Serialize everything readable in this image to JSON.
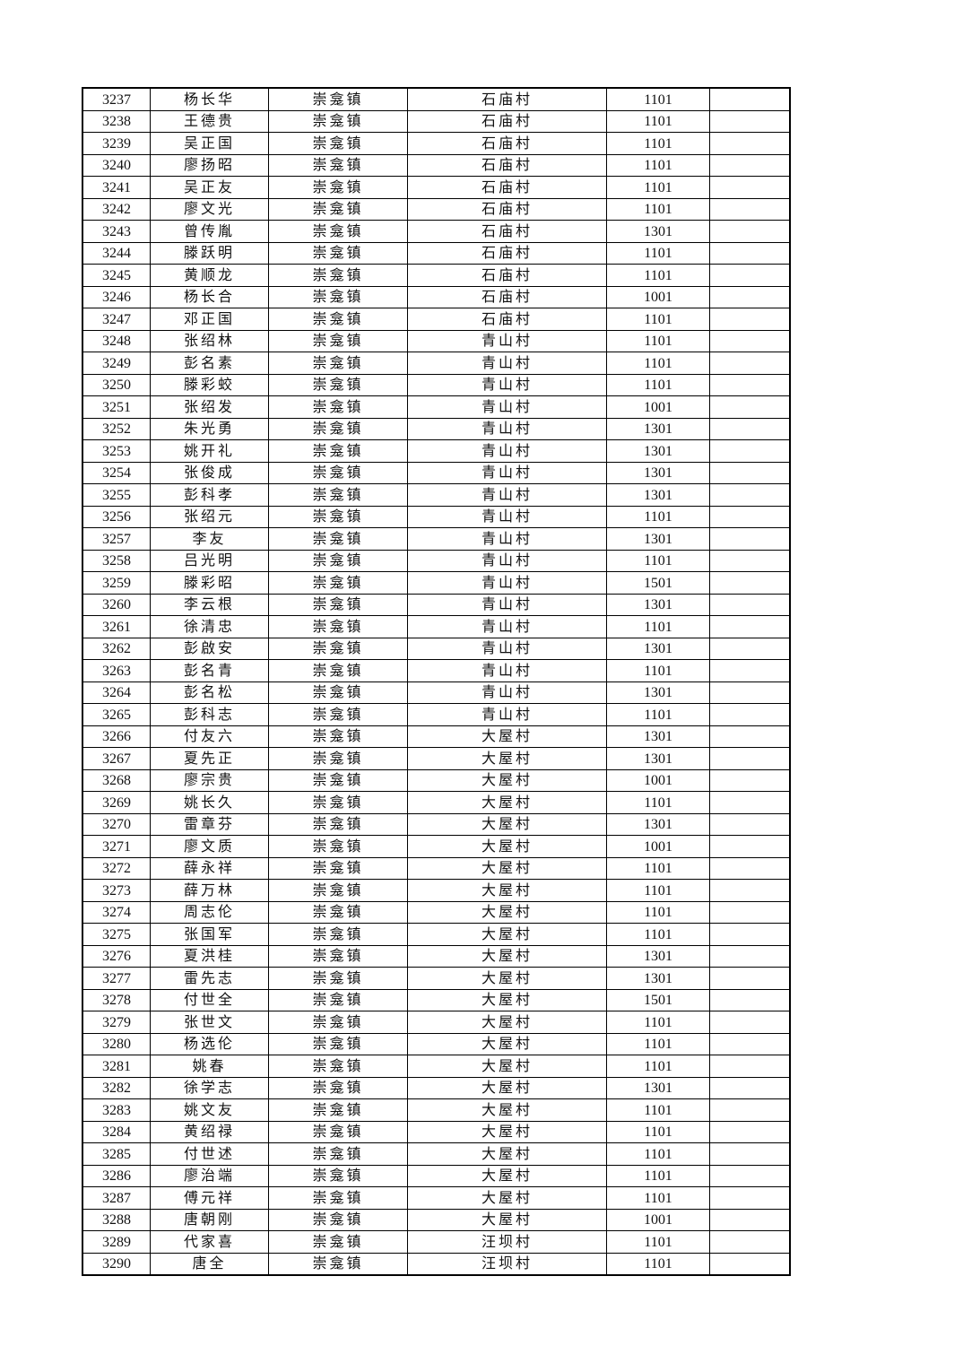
{
  "rows": [
    [
      "3237",
      "杨长华",
      "崇龛镇",
      "石庙村",
      "1101",
      ""
    ],
    [
      "3238",
      "王德贵",
      "崇龛镇",
      "石庙村",
      "1101",
      ""
    ],
    [
      "3239",
      "吴正国",
      "崇龛镇",
      "石庙村",
      "1101",
      ""
    ],
    [
      "3240",
      "廖扬昭",
      "崇龛镇",
      "石庙村",
      "1101",
      ""
    ],
    [
      "3241",
      "吴正友",
      "崇龛镇",
      "石庙村",
      "1101",
      ""
    ],
    [
      "3242",
      "廖文光",
      "崇龛镇",
      "石庙村",
      "1101",
      ""
    ],
    [
      "3243",
      "曾传胤",
      "崇龛镇",
      "石庙村",
      "1301",
      ""
    ],
    [
      "3244",
      "滕跃明",
      "崇龛镇",
      "石庙村",
      "1101",
      ""
    ],
    [
      "3245",
      "黄顺龙",
      "崇龛镇",
      "石庙村",
      "1101",
      ""
    ],
    [
      "3246",
      "杨长合",
      "崇龛镇",
      "石庙村",
      "1001",
      ""
    ],
    [
      "3247",
      "邓正国",
      "崇龛镇",
      "石庙村",
      "1101",
      ""
    ],
    [
      "3248",
      "张绍林",
      "崇龛镇",
      "青山村",
      "1101",
      ""
    ],
    [
      "3249",
      "彭名素",
      "崇龛镇",
      "青山村",
      "1101",
      ""
    ],
    [
      "3250",
      "滕彩蛟",
      "崇龛镇",
      "青山村",
      "1101",
      ""
    ],
    [
      "3251",
      "张绍发",
      "崇龛镇",
      "青山村",
      "1001",
      ""
    ],
    [
      "3252",
      "朱光勇",
      "崇龛镇",
      "青山村",
      "1301",
      ""
    ],
    [
      "3253",
      "姚开礼",
      "崇龛镇",
      "青山村",
      "1301",
      ""
    ],
    [
      "3254",
      "张俊成",
      "崇龛镇",
      "青山村",
      "1301",
      ""
    ],
    [
      "3255",
      "彭科孝",
      "崇龛镇",
      "青山村",
      "1301",
      ""
    ],
    [
      "3256",
      "张绍元",
      "崇龛镇",
      "青山村",
      "1101",
      ""
    ],
    [
      "3257",
      "李友",
      "崇龛镇",
      "青山村",
      "1301",
      ""
    ],
    [
      "3258",
      "吕光明",
      "崇龛镇",
      "青山村",
      "1101",
      ""
    ],
    [
      "3259",
      "滕彩昭",
      "崇龛镇",
      "青山村",
      "1501",
      ""
    ],
    [
      "3260",
      "李云根",
      "崇龛镇",
      "青山村",
      "1301",
      ""
    ],
    [
      "3261",
      "徐清忠",
      "崇龛镇",
      "青山村",
      "1101",
      ""
    ],
    [
      "3262",
      "彭啟安",
      "崇龛镇",
      "青山村",
      "1301",
      ""
    ],
    [
      "3263",
      "彭名青",
      "崇龛镇",
      "青山村",
      "1101",
      ""
    ],
    [
      "3264",
      "彭名松",
      "崇龛镇",
      "青山村",
      "1301",
      ""
    ],
    [
      "3265",
      "彭科志",
      "崇龛镇",
      "青山村",
      "1101",
      ""
    ],
    [
      "3266",
      "付友六",
      "崇龛镇",
      "大屋村",
      "1301",
      ""
    ],
    [
      "3267",
      "夏先正",
      "崇龛镇",
      "大屋村",
      "1301",
      ""
    ],
    [
      "3268",
      "廖宗贵",
      "崇龛镇",
      "大屋村",
      "1001",
      ""
    ],
    [
      "3269",
      "姚长久",
      "崇龛镇",
      "大屋村",
      "1101",
      ""
    ],
    [
      "3270",
      "雷章芬",
      "崇龛镇",
      "大屋村",
      "1301",
      ""
    ],
    [
      "3271",
      "廖文质",
      "崇龛镇",
      "大屋村",
      "1001",
      ""
    ],
    [
      "3272",
      "薛永祥",
      "崇龛镇",
      "大屋村",
      "1101",
      ""
    ],
    [
      "3273",
      "薛万林",
      "崇龛镇",
      "大屋村",
      "1101",
      ""
    ],
    [
      "3274",
      "周志伦",
      "崇龛镇",
      "大屋村",
      "1101",
      ""
    ],
    [
      "3275",
      "张国军",
      "崇龛镇",
      "大屋村",
      "1101",
      ""
    ],
    [
      "3276",
      "夏洪桂",
      "崇龛镇",
      "大屋村",
      "1301",
      ""
    ],
    [
      "3277",
      "雷先志",
      "崇龛镇",
      "大屋村",
      "1301",
      ""
    ],
    [
      "3278",
      "付世全",
      "崇龛镇",
      "大屋村",
      "1501",
      ""
    ],
    [
      "3279",
      "张世文",
      "崇龛镇",
      "大屋村",
      "1101",
      ""
    ],
    [
      "3280",
      "杨选伦",
      "崇龛镇",
      "大屋村",
      "1101",
      ""
    ],
    [
      "3281",
      "姚春",
      "崇龛镇",
      "大屋村",
      "1101",
      ""
    ],
    [
      "3282",
      "徐学志",
      "崇龛镇",
      "大屋村",
      "1301",
      ""
    ],
    [
      "3283",
      "姚文友",
      "崇龛镇",
      "大屋村",
      "1101",
      ""
    ],
    [
      "3284",
      "黄绍禄",
      "崇龛镇",
      "大屋村",
      "1101",
      ""
    ],
    [
      "3285",
      "付世述",
      "崇龛镇",
      "大屋村",
      "1101",
      ""
    ],
    [
      "3286",
      "廖治端",
      "崇龛镇",
      "大屋村",
      "1101",
      ""
    ],
    [
      "3287",
      "傅元祥",
      "崇龛镇",
      "大屋村",
      "1101",
      ""
    ],
    [
      "3288",
      "唐朝刚",
      "崇龛镇",
      "大屋村",
      "1001",
      ""
    ],
    [
      "3289",
      "代家喜",
      "崇龛镇",
      "汪坝村",
      "1101",
      ""
    ],
    [
      "3290",
      "唐全",
      "崇龛镇",
      "汪坝村",
      "1101",
      ""
    ]
  ]
}
